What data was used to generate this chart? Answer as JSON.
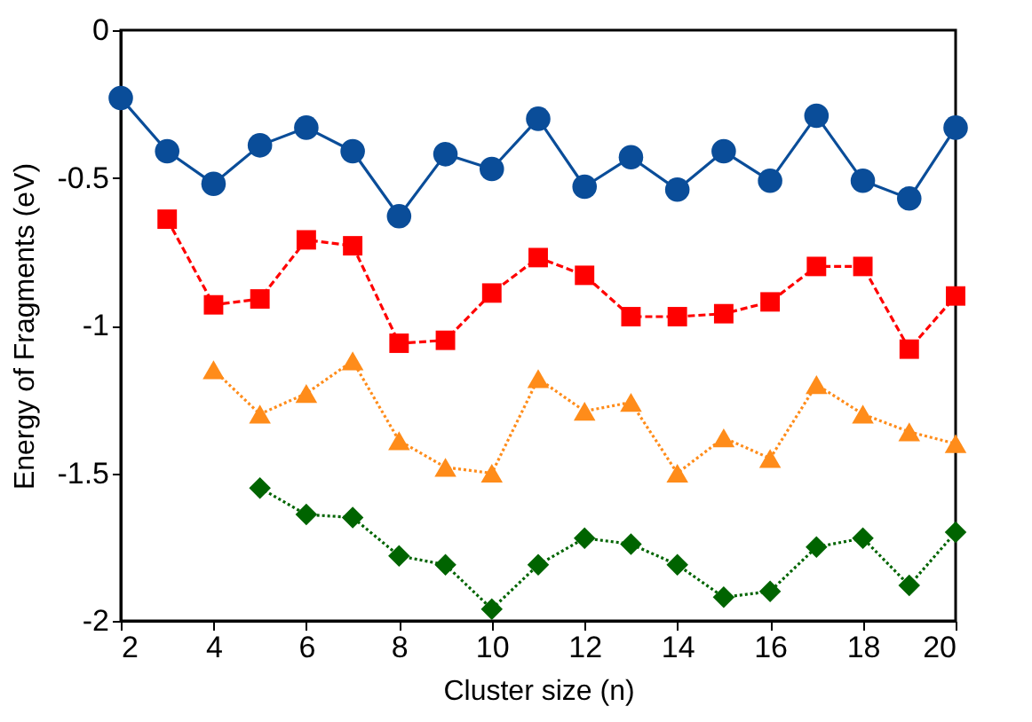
{
  "chart_data": {
    "type": "line",
    "xlabel": "Cluster size (n)",
    "ylabel": "Energy of Fragments (eV)",
    "xlim": [
      2,
      20
    ],
    "xticks": [
      2,
      4,
      6,
      8,
      10,
      12,
      14,
      16,
      18,
      20
    ],
    "ylim": [
      -2,
      0
    ],
    "yticks": [
      -2,
      -1.5,
      -1,
      -0.5,
      0
    ],
    "grid": false,
    "series": [
      {
        "color": "#0a4d99",
        "marker": "circle",
        "line_style": "solid",
        "x": [
          2,
          3,
          4,
          5,
          6,
          7,
          8,
          9,
          10,
          11,
          12,
          13,
          14,
          15,
          16,
          17,
          18,
          19,
          20
        ],
        "values": [
          -0.23,
          -0.41,
          -0.52,
          -0.39,
          -0.33,
          -0.41,
          -0.63,
          -0.42,
          -0.47,
          -0.3,
          -0.53,
          -0.43,
          -0.54,
          -0.41,
          -0.51,
          -0.29,
          -0.51,
          -0.57,
          -0.33
        ]
      },
      {
        "color": "#ff0000",
        "marker": "square",
        "line_style": "dashed",
        "x": [
          3,
          4,
          5,
          6,
          7,
          8,
          9,
          10,
          11,
          12,
          13,
          14,
          15,
          16,
          17,
          18,
          19,
          20
        ],
        "values": [
          -0.64,
          -0.93,
          -0.91,
          -0.71,
          -0.73,
          -1.06,
          -1.05,
          -0.89,
          -0.77,
          -0.83,
          -0.97,
          -0.97,
          -0.96,
          -0.92,
          -0.8,
          -0.8,
          -1.08,
          -0.9
        ]
      },
      {
        "color": "#ff8c1a",
        "marker": "triangle",
        "line_style": "dotted",
        "x": [
          4,
          5,
          6,
          7,
          8,
          9,
          10,
          11,
          12,
          13,
          14,
          15,
          16,
          17,
          18,
          19,
          20
        ],
        "values": [
          -1.15,
          -1.3,
          -1.23,
          -1.12,
          -1.39,
          -1.48,
          -1.5,
          -1.18,
          -1.29,
          -1.26,
          -1.5,
          -1.38,
          -1.45,
          -1.2,
          -1.3,
          -1.36,
          -1.4
        ]
      },
      {
        "color": "#006400",
        "marker": "diamond",
        "line_style": "dotted",
        "x": [
          5,
          6,
          7,
          8,
          9,
          10,
          11,
          12,
          13,
          14,
          15,
          16,
          17,
          18,
          19,
          20
        ],
        "values": [
          -1.55,
          -1.64,
          -1.65,
          -1.78,
          -1.81,
          -1.96,
          -1.81,
          -1.72,
          -1.74,
          -1.81,
          -1.92,
          -1.9,
          -1.75,
          -1.72,
          -1.88,
          -1.7
        ]
      }
    ]
  }
}
